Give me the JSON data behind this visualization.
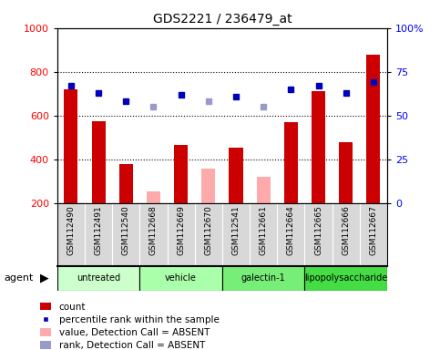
{
  "title": "GDS2221 / 236479_at",
  "samples": [
    "GSM112490",
    "GSM112491",
    "GSM112540",
    "GSM112668",
    "GSM112669",
    "GSM112670",
    "GSM112541",
    "GSM112661",
    "GSM112664",
    "GSM112665",
    "GSM112666",
    "GSM112667"
  ],
  "bar_heights": [
    720,
    575,
    380,
    null,
    465,
    null,
    453,
    null,
    570,
    710,
    480,
    880
  ],
  "absent_bar_heights": [
    null,
    null,
    null,
    255,
    null,
    358,
    null,
    318,
    null,
    null,
    null,
    null
  ],
  "dot_values_pct": [
    67,
    63,
    58,
    55,
    62,
    58,
    61,
    55,
    65,
    67,
    63,
    69
  ],
  "dot_absent": [
    false,
    false,
    false,
    true,
    false,
    true,
    false,
    true,
    false,
    false,
    false,
    false
  ],
  "ylim_left": [
    200,
    1000
  ],
  "ylim_right": [
    0,
    100
  ],
  "yticks_left": [
    200,
    400,
    600,
    800,
    1000
  ],
  "yticks_right": [
    0,
    25,
    50,
    75,
    100
  ],
  "bar_color_present": "#cc0000",
  "bar_color_absent": "#ffaaaa",
  "dot_color_present": "#0000bb",
  "dot_color_absent": "#9999cc",
  "sample_bg": "#d8d8d8",
  "group_data": [
    {
      "start": 0,
      "end": 2,
      "label": "untreated",
      "color": "#ccffcc"
    },
    {
      "start": 3,
      "end": 5,
      "label": "vehicle",
      "color": "#aaffaa"
    },
    {
      "start": 6,
      "end": 8,
      "label": "galectin-1",
      "color": "#77ee77"
    },
    {
      "start": 9,
      "end": 11,
      "label": "lipopolysaccharide",
      "color": "#44dd44"
    }
  ],
  "legend_items": [
    {
      "color": "#cc0000",
      "type": "rect",
      "label": "count"
    },
    {
      "color": "#0000bb",
      "type": "square",
      "label": "percentile rank within the sample"
    },
    {
      "color": "#ffaaaa",
      "type": "rect",
      "label": "value, Detection Call = ABSENT"
    },
    {
      "color": "#9999cc",
      "type": "rect",
      "label": "rank, Detection Call = ABSENT"
    }
  ]
}
